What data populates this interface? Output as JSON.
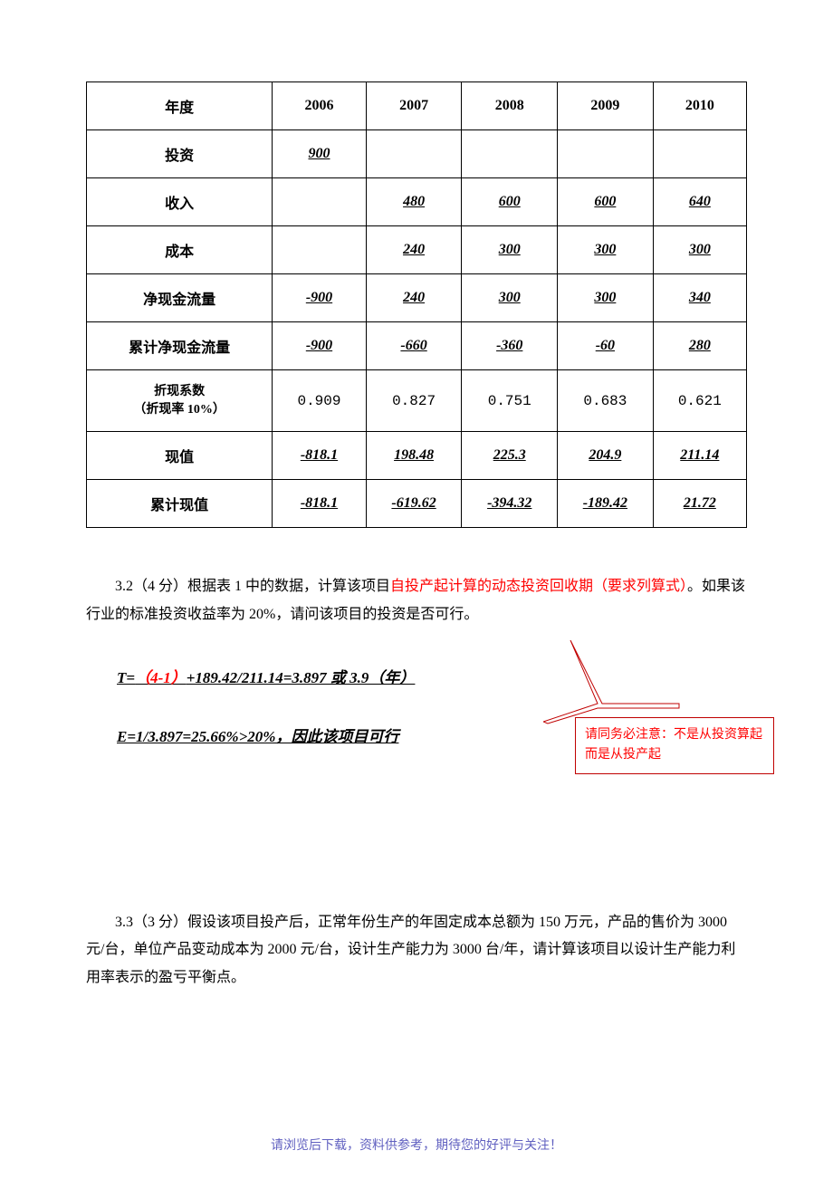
{
  "table": {
    "columns": [
      "年度",
      "2006",
      "2007",
      "2008",
      "2009",
      "2010"
    ],
    "rows": [
      {
        "label": "投资",
        "cells": [
          "900",
          "",
          "",
          "",
          ""
        ],
        "styles": [
          "uval",
          "",
          "",
          "",
          ""
        ]
      },
      {
        "label": "收入",
        "cells": [
          "",
          "480",
          "600",
          "600",
          "640"
        ],
        "styles": [
          "",
          "uval",
          "uval",
          "uval",
          "uval"
        ]
      },
      {
        "label": "成本",
        "cells": [
          "",
          "240",
          "300",
          "300",
          "300"
        ],
        "styles": [
          "",
          "uval",
          "uval",
          "uval",
          "uval"
        ]
      },
      {
        "label": "净现金流量",
        "cells": [
          "-900",
          "240",
          "300",
          "300",
          "340"
        ],
        "styles": [
          "uval",
          "uval",
          "uval",
          "uval",
          "uval"
        ]
      },
      {
        "label": "累计净现金流量",
        "cells": [
          "-900",
          "-660",
          "-360",
          "-60",
          "280"
        ],
        "styles": [
          "uval",
          "uval",
          "uval",
          "uval",
          "uval"
        ]
      },
      {
        "label": "折现系数\n（折现率 10%）",
        "cells": [
          "0.909",
          "0.827",
          "0.751",
          "0.683",
          "0.621"
        ],
        "styles": [
          "pval",
          "pval",
          "pval",
          "pval",
          "pval"
        ],
        "sublabel": true
      },
      {
        "label": "现值",
        "cells": [
          "-818.1",
          "198.48",
          "225.3",
          "204.9",
          "211.14"
        ],
        "styles": [
          "uval",
          "uval",
          "uval",
          "uval",
          "uval"
        ]
      },
      {
        "label": "累计现值",
        "cells": [
          "-818.1",
          "-619.62",
          "-394.32",
          "-189.42",
          "21.72"
        ],
        "styles": [
          "uval",
          "uval",
          "uval",
          "uval",
          "uval"
        ]
      }
    ]
  },
  "q32": {
    "prefix": "3.2（4 分）根据表 1 中的数据，计算该项目",
    "red1": "自投产起计算的动态投资回收期（要求列算式）",
    "rest": "。如果该行业的标准投资收益率为 20%，请问该项目的投资是否可行。"
  },
  "formula1": {
    "prefix": "T=",
    "red": "（4-1）",
    "rest": "+189.42/211.14=3.897 或 3.9（年）"
  },
  "formula2": "E=1/3.897=25.66%>20%，因此该项目可行",
  "callout": "请同务必注意：不是从投资算起而是从投产起",
  "q33": "3.3（3 分）假设该项目投产后，正常年份生产的年固定成本总额为 150 万元，产品的售价为 3000 元/台，单位产品变动成本为 2000 元/台，设计生产能力为 3000 台/年，请计算该项目以设计生产能力利用率表示的盈亏平衡点。",
  "footer": "请浏览后下载，资料供参考，期待您的好评与关注！",
  "colors": {
    "border": "#000000",
    "red": "#ff0000",
    "calloutBorder": "#c00000",
    "footer": "#6060c0",
    "bg": "#ffffff"
  }
}
